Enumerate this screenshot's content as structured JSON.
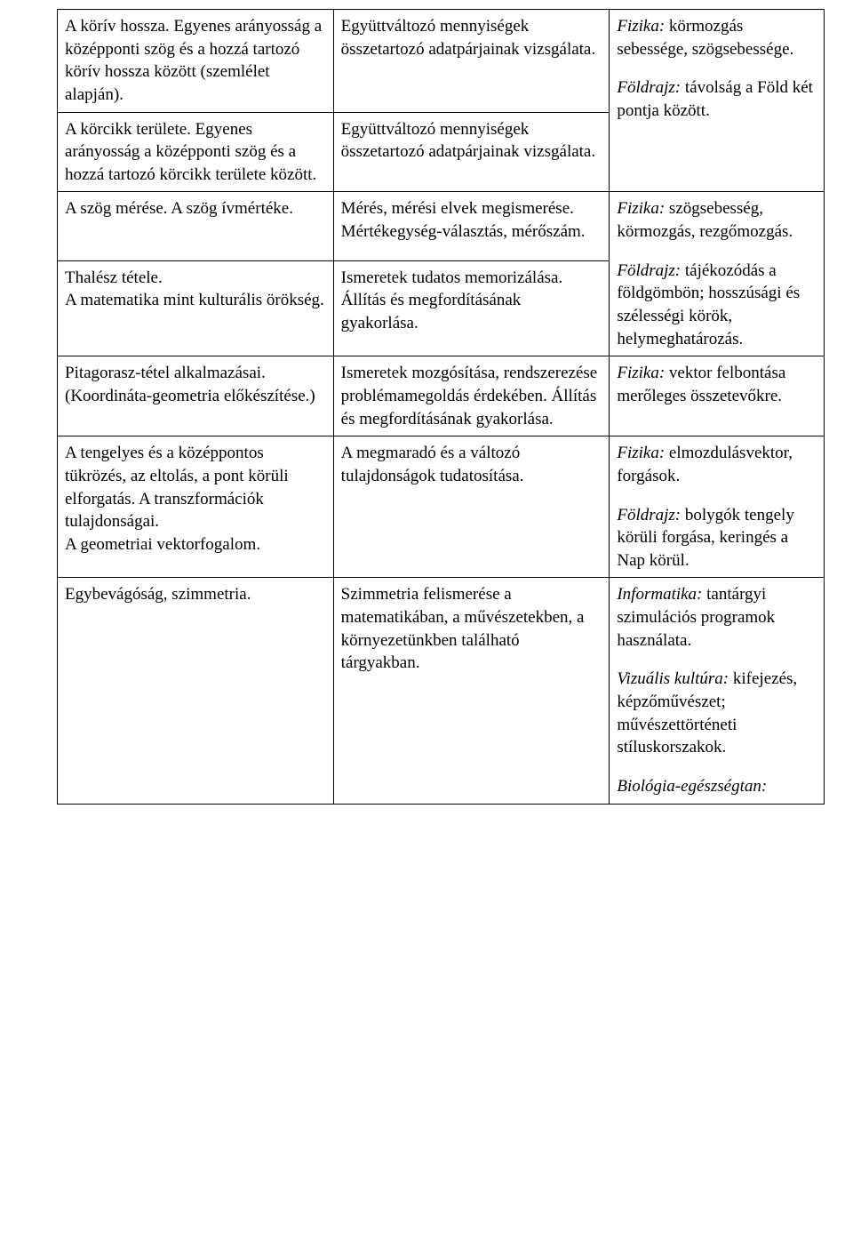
{
  "rows": [
    {
      "col1": "A körív hossza. Egyenes arányosság a középponti szög és a hozzá tartozó körív hossza között (szemlélet alapján).",
      "col2": "Együttváltozó mennyiségek összetartozó adatpárjainak vizsgálata.",
      "col3": [
        {
          "italic": "Fizika:",
          "plain": " körmozgás sebessége, szögsebessége."
        },
        {
          "italic": "Földrajz:",
          "plain": " távolság a Föld két pontja között.",
          "gap": true
        }
      ]
    },
    {
      "col1": "A körcikk területe. Egyenes arányosság a középponti szög és a hozzá tartozó körcikk területe között.",
      "col2": "Együttváltozó mennyiségek összetartozó adatpárjainak vizsgálata.",
      "col3_empty": true
    },
    {
      "col1": "A szög mérése. A szög ívmértéke.",
      "col2": "Mérés, mérési elvek megismerése. Mértékegység-választás, mérőszám.",
      "col3": [
        {
          "italic": "Fizika:",
          "plain": " szögsebesség, körmozgás, rezgőmozgás."
        },
        {
          "italic": "Földrajz:",
          "plain": " tájékozódás a földgömbön; hosszúsági és szélességi körök, helymeghatározás.",
          "gap": true
        }
      ]
    },
    {
      "col1": "Thalész tétele.\nA matematika mint kulturális örökség.",
      "col2": "Ismeretek tudatos memorizálása. Állítás és megfordításának gyakorlása.",
      "col3_empty": true
    },
    {
      "col1": "Pitagorasz-tétel alkalmazásai. (Koordináta-geometria előkészítése.)",
      "col2": "Ismeretek mozgósítása, rendszerezése problémamegoldás érdekében. Állítás és megfordításának gyakorlása.",
      "col3": [
        {
          "italic": "Fizika:",
          "plain": " vektor felbontása merőleges összetevőkre."
        }
      ]
    },
    {
      "col1": "A tengelyes és a középpontos tükrözés, az eltolás, a pont körüli elforgatás. A transzformációk tulajdonságai.\nA geometriai vektorfogalom.",
      "col2": "A megmaradó és a változó tulajdonságok tudatosítása.",
      "col3": [
        {
          "italic": "Fizika:",
          "plain": " elmozdulásvektor, forgások."
        },
        {
          "italic": "Földrajz:",
          "plain": " bolygók tengely körüli forgása, keringés a Nap körül.",
          "gap": true
        }
      ]
    },
    {
      "col1": "Egybevágóság, szimmetria.",
      "col2": "Szimmetria felismerése a matematikában, a művészetekben, a környezetünkben található tárgyakban.",
      "col3": [
        {
          "italic": "Informatika:",
          "plain": " tantárgyi szimulációs programok használata."
        },
        {
          "italic": "Vizuális kultúra:",
          "plain": " kifejezés, képzőművészet; művészettörténeti stíluskorszakok.",
          "gap": true
        },
        {
          "italic": "Biológia-egészségtan:",
          "plain": "",
          "gap": true
        }
      ]
    }
  ]
}
